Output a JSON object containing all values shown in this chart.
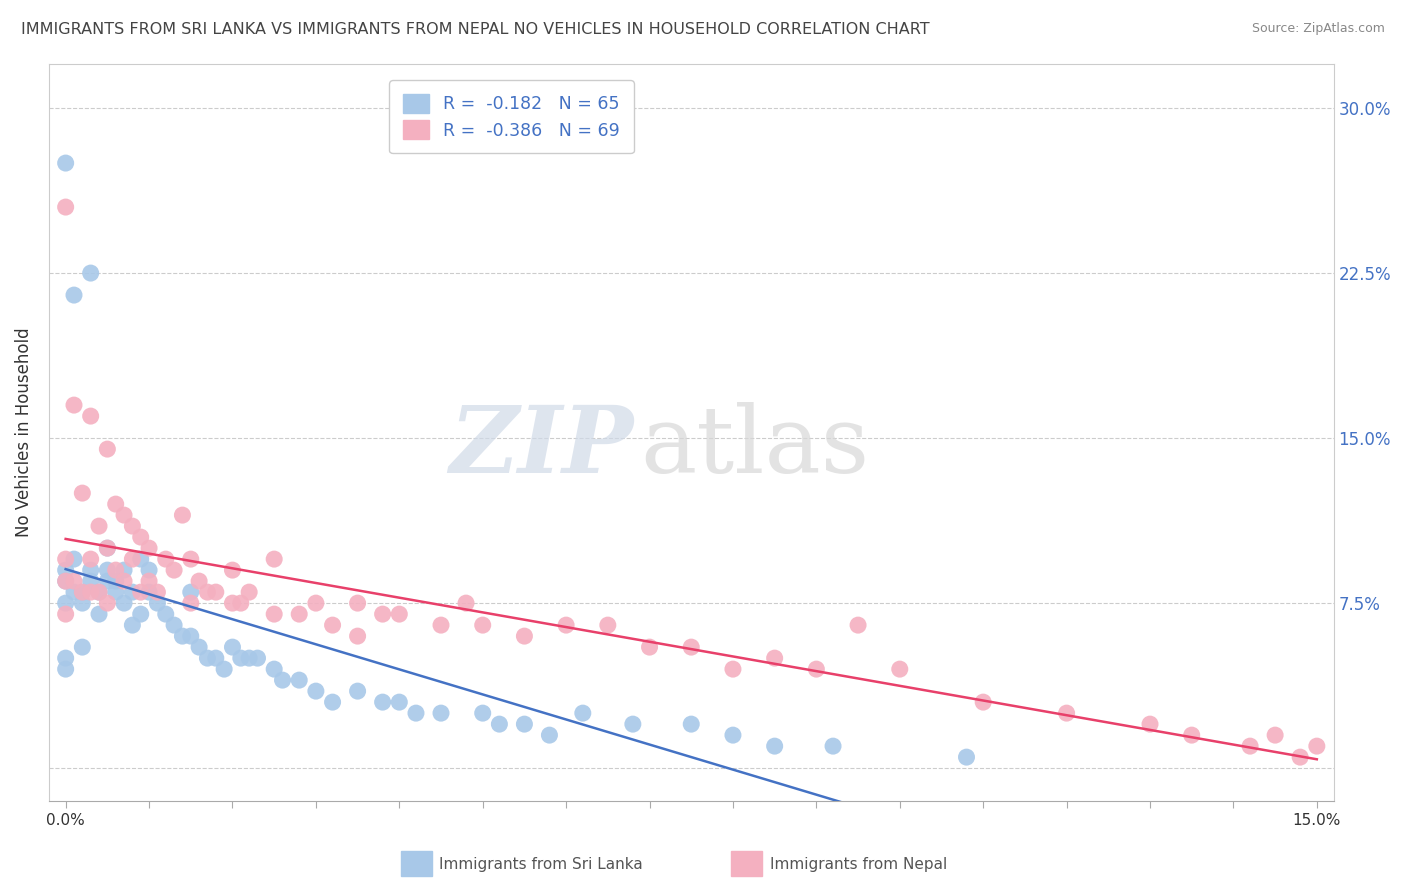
{
  "title": "IMMIGRANTS FROM SRI LANKA VS IMMIGRANTS FROM NEPAL NO VEHICLES IN HOUSEHOLD CORRELATION CHART",
  "source": "Source: ZipAtlas.com",
  "ylabel": "No Vehicles in Household",
  "xlim": [
    0.0,
    15.0
  ],
  "ylim": [
    -1.5,
    32.0
  ],
  "yticks": [
    0.0,
    7.5,
    15.0,
    22.5,
    30.0
  ],
  "ytick_labels": [
    "",
    "7.5%",
    "15.0%",
    "22.5%",
    "30.0%"
  ],
  "grid_color": "#cccccc",
  "background_color": "#ffffff",
  "watermark_zip": "ZIP",
  "watermark_atlas": "atlas",
  "series": [
    {
      "label": "Immigrants from Sri Lanka",
      "R": "-0.182",
      "N": "65",
      "color": "#a8c8e8",
      "line_color": "#4472c4",
      "x": [
        0.0,
        0.0,
        0.0,
        0.0,
        0.0,
        0.0,
        0.1,
        0.1,
        0.1,
        0.2,
        0.2,
        0.2,
        0.3,
        0.3,
        0.3,
        0.4,
        0.4,
        0.5,
        0.5,
        0.5,
        0.6,
        0.6,
        0.7,
        0.7,
        0.8,
        0.8,
        0.9,
        0.9,
        1.0,
        1.0,
        1.1,
        1.2,
        1.3,
        1.4,
        1.5,
        1.5,
        1.6,
        1.7,
        1.8,
        1.9,
        2.0,
        2.1,
        2.2,
        2.3,
        2.5,
        2.6,
        2.8,
        3.0,
        3.2,
        3.5,
        3.8,
        4.0,
        4.2,
        4.5,
        5.0,
        5.2,
        5.5,
        5.8,
        6.2,
        6.8,
        7.5,
        8.0,
        8.5,
        9.2,
        10.8
      ],
      "y": [
        27.5,
        9.0,
        8.5,
        7.5,
        5.0,
        4.5,
        21.5,
        9.5,
        8.0,
        8.0,
        7.5,
        5.5,
        22.5,
        9.0,
        8.5,
        8.0,
        7.0,
        10.0,
        9.0,
        8.5,
        8.5,
        8.0,
        9.0,
        7.5,
        8.0,
        6.5,
        9.5,
        7.0,
        9.0,
        8.0,
        7.5,
        7.0,
        6.5,
        6.0,
        8.0,
        6.0,
        5.5,
        5.0,
        5.0,
        4.5,
        5.5,
        5.0,
        5.0,
        5.0,
        4.5,
        4.0,
        4.0,
        3.5,
        3.0,
        3.5,
        3.0,
        3.0,
        2.5,
        2.5,
        2.5,
        2.0,
        2.0,
        1.5,
        2.5,
        2.0,
        2.0,
        1.5,
        1.0,
        1.0,
        0.5
      ]
    },
    {
      "label": "Immigrants from Nepal",
      "R": "-0.386",
      "N": "69",
      "color": "#f4b0c0",
      "line_color": "#e8406a",
      "x": [
        0.0,
        0.0,
        0.0,
        0.0,
        0.1,
        0.1,
        0.2,
        0.2,
        0.3,
        0.3,
        0.3,
        0.4,
        0.4,
        0.5,
        0.5,
        0.5,
        0.6,
        0.6,
        0.7,
        0.7,
        0.8,
        0.8,
        0.9,
        0.9,
        1.0,
        1.0,
        1.1,
        1.2,
        1.3,
        1.4,
        1.5,
        1.5,
        1.6,
        1.7,
        1.8,
        2.0,
        2.0,
        2.1,
        2.2,
        2.5,
        2.5,
        2.8,
        3.0,
        3.2,
        3.5,
        3.5,
        3.8,
        4.0,
        4.5,
        4.8,
        5.0,
        5.5,
        6.0,
        6.5,
        7.0,
        7.5,
        8.0,
        8.5,
        9.0,
        9.5,
        10.0,
        11.0,
        12.0,
        13.0,
        13.5,
        14.2,
        14.5,
        14.8,
        15.0
      ],
      "y": [
        25.5,
        9.5,
        8.5,
        7.0,
        16.5,
        8.5,
        12.5,
        8.0,
        16.0,
        9.5,
        8.0,
        11.0,
        8.0,
        14.5,
        10.0,
        7.5,
        12.0,
        9.0,
        11.5,
        8.5,
        11.0,
        9.5,
        10.5,
        8.0,
        10.0,
        8.5,
        8.0,
        9.5,
        9.0,
        11.5,
        9.5,
        7.5,
        8.5,
        8.0,
        8.0,
        9.0,
        7.5,
        7.5,
        8.0,
        9.5,
        7.0,
        7.0,
        7.5,
        6.5,
        7.5,
        6.0,
        7.0,
        7.0,
        6.5,
        7.5,
        6.5,
        6.0,
        6.5,
        6.5,
        5.5,
        5.5,
        4.5,
        5.0,
        4.5,
        6.5,
        4.5,
        3.0,
        2.5,
        2.0,
        1.5,
        1.0,
        1.5,
        0.5,
        1.0
      ]
    }
  ],
  "legend_entries": [
    {
      "label": "R =  -0.182   N = 65",
      "color": "#a8c8e8"
    },
    {
      "label": "R =  -0.386   N = 69",
      "color": "#f4b0c0"
    }
  ]
}
